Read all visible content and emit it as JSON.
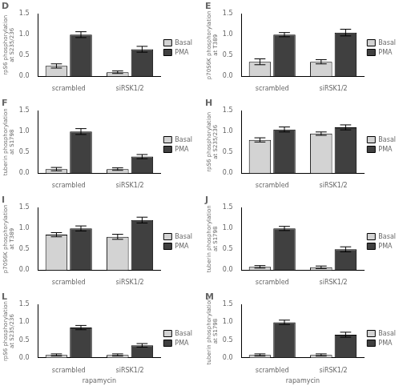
{
  "chart_data": [
    {
      "type": "bar",
      "title": "D",
      "ylabel": "rpS6 phosphorylation\nat S235/236",
      "categories": [
        "scrambled",
        "siRSK1/2"
      ],
      "series": [
        {
          "name": "Basal",
          "color": "#d3d3d3",
          "values": [
            0.25,
            0.1
          ],
          "errors": [
            0.05,
            0.03
          ]
        },
        {
          "name": "PMA",
          "color": "#404040",
          "values": [
            1.0,
            0.65
          ],
          "errors": [
            0.07,
            0.07
          ]
        }
      ],
      "ylim": [
        0,
        1.5
      ],
      "yticks": [
        {
          "value": 0,
          "label": "0.0"
        },
        0.5,
        {
          "value": 1,
          "label": "1.0"
        },
        1.5
      ],
      "grid": false,
      "legend": "right"
    },
    {
      "type": "bar",
      "title": "E",
      "ylabel": "p70S6K phosphorylation\nat T389",
      "categories": [
        "scrambled",
        "siRSK1/2"
      ],
      "series": [
        {
          "name": "Basal",
          "color": "#d3d3d3",
          "values": [
            0.35,
            0.35
          ],
          "errors": [
            0.07,
            0.05
          ]
        },
        {
          "name": "PMA",
          "color": "#404040",
          "values": [
            1.0,
            1.05
          ],
          "errors": [
            0.05,
            0.08
          ]
        }
      ],
      "ylim": [
        0,
        1.5
      ],
      "yticks": [
        {
          "value": 0,
          "label": "0.0"
        },
        0.5,
        {
          "value": 1,
          "label": "1.0"
        },
        1.5
      ],
      "grid": false,
      "legend": "right"
    },
    {
      "type": "bar",
      "title": "F",
      "ylabel": "tuberin phosphorylation\nat S1798",
      "categories": [
        "scrambled",
        "siRSK1/2"
      ],
      "series": [
        {
          "name": "Basal",
          "color": "#d3d3d3",
          "values": [
            0.1,
            0.1
          ],
          "errors": [
            0.04,
            0.03
          ]
        },
        {
          "name": "PMA",
          "color": "#404040",
          "values": [
            1.0,
            0.4
          ],
          "errors": [
            0.07,
            0.05
          ]
        }
      ],
      "ylim": [
        0,
        1.5
      ],
      "yticks": [
        {
          "value": 0,
          "label": "0.0"
        },
        0.5,
        {
          "value": 1,
          "label": "1.0"
        },
        1.5
      ],
      "grid": false,
      "legend": "right"
    },
    {
      "type": "bar",
      "title": "H",
      "ylabel": "rpS6 phosphorylation\nat S235/236",
      "categories": [
        "scrambled",
        "siRSK1/2"
      ],
      "series": [
        {
          "name": "Basal",
          "color": "#d3d3d3",
          "values": [
            0.8,
            0.95
          ],
          "errors": [
            0.05,
            0.04
          ]
        },
        {
          "name": "PMA",
          "color": "#404040",
          "values": [
            1.05,
            1.1
          ],
          "errors": [
            0.06,
            0.06
          ]
        }
      ],
      "ylim": [
        0,
        1.5
      ],
      "yticks": [
        {
          "value": 0,
          "label": "0.0"
        },
        0.5,
        {
          "value": 1,
          "label": "1.0"
        },
        1.5
      ],
      "grid": false,
      "legend": "right"
    },
    {
      "type": "bar",
      "title": "I",
      "ylabel": "p70S6K phosphorylation\nat T389",
      "categories": [
        "scrambled",
        "siRSK1/2"
      ],
      "series": [
        {
          "name": "Basal",
          "color": "#d3d3d3",
          "values": [
            0.85,
            0.8
          ],
          "errors": [
            0.05,
            0.06
          ]
        },
        {
          "name": "PMA",
          "color": "#404040",
          "values": [
            1.0,
            1.2
          ],
          "errors": [
            0.06,
            0.07
          ]
        }
      ],
      "ylim": [
        0,
        1.5
      ],
      "yticks": [
        {
          "value": 0,
          "label": "0.0"
        },
        0.5,
        {
          "value": 1,
          "label": "1.0"
        },
        1.5
      ],
      "grid": false,
      "legend": "right"
    },
    {
      "type": "bar",
      "title": "J",
      "ylabel": "tuberin phosphorylation\nat S1798",
      "categories": [
        "scrambled",
        "siRSK1/2"
      ],
      "series": [
        {
          "name": "Basal",
          "color": "#d3d3d3",
          "values": [
            0.08,
            0.07
          ],
          "errors": [
            0.03,
            0.03
          ]
        },
        {
          "name": "PMA",
          "color": "#404040",
          "values": [
            1.0,
            0.5
          ],
          "errors": [
            0.05,
            0.06
          ]
        }
      ],
      "ylim": [
        0,
        1.5
      ],
      "yticks": [
        {
          "value": 0,
          "label": "0.0"
        },
        0.5,
        {
          "value": 1,
          "label": "1.0"
        },
        1.5
      ],
      "grid": false,
      "legend": "right"
    },
    {
      "type": "bar",
      "title": "L",
      "ylabel": "rpS6 phosphorylation\nat S235/236",
      "xlabel": "rapamycin",
      "categories": [
        "scrambled",
        "siRSK1/2"
      ],
      "series": [
        {
          "name": "Basal",
          "color": "#d3d3d3",
          "values": [
            0.08,
            0.08
          ],
          "errors": [
            0.03,
            0.03
          ]
        },
        {
          "name": "PMA",
          "color": "#404040",
          "values": [
            0.85,
            0.35
          ],
          "errors": [
            0.06,
            0.05
          ]
        }
      ],
      "ylim": [
        0,
        1.5
      ],
      "yticks": [
        {
          "value": 0,
          "label": "0.0"
        },
        0.5,
        {
          "value": 1,
          "label": "1.0"
        },
        1.5
      ],
      "grid": false,
      "legend": "right"
    },
    {
      "type": "bar",
      "title": "M",
      "ylabel": "tuberin phosphorylation\nat S1798",
      "xlabel": "rapamycin",
      "categories": [
        "scrambled",
        "siRSK1/2"
      ],
      "series": [
        {
          "name": "Basal",
          "color": "#d3d3d3",
          "values": [
            0.08,
            0.08
          ],
          "errors": [
            0.03,
            0.03
          ]
        },
        {
          "name": "PMA",
          "color": "#404040",
          "values": [
            1.0,
            0.65
          ],
          "errors": [
            0.06,
            0.07
          ]
        }
      ],
      "ylim": [
        0,
        1.5
      ],
      "yticks": [
        {
          "value": 0,
          "label": "0.0"
        },
        0.5,
        {
          "value": 1,
          "label": "1.0"
        },
        1.5
      ],
      "grid": false,
      "legend": "right"
    }
  ]
}
